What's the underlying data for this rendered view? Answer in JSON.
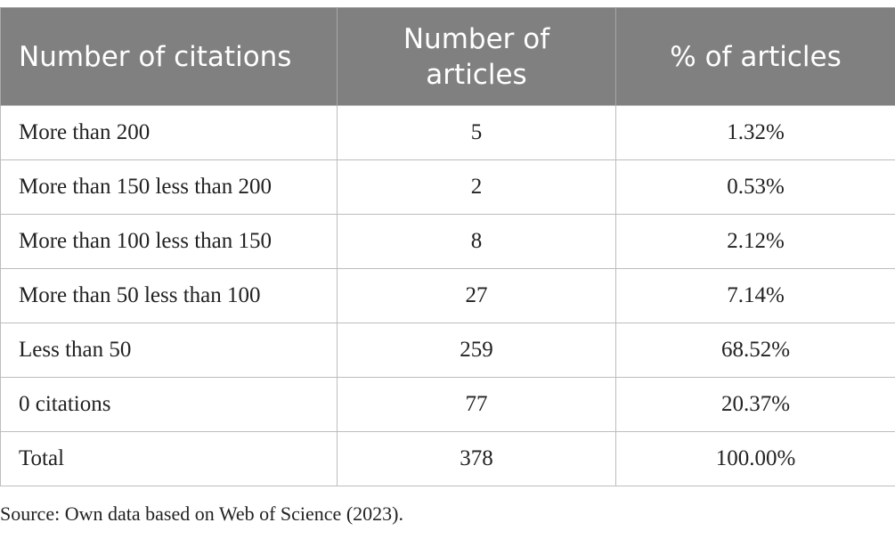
{
  "table": {
    "headers": [
      "Number of citations",
      "Number of articles",
      "% of articles"
    ],
    "rows": [
      [
        "More than 200",
        "5",
        "1.32%"
      ],
      [
        "More than 150 less than 200",
        "2",
        "0.53%"
      ],
      [
        "More than 100 less than 150",
        "8",
        "2.12%"
      ],
      [
        "More than 50 less than 100",
        "27",
        "7.14%"
      ],
      [
        "Less than 50",
        "259",
        "68.52%"
      ],
      [
        "0 citations",
        "77",
        "20.37%"
      ],
      [
        "Total",
        "378",
        "100.00%"
      ]
    ]
  },
  "footnote": "Source: Own data based on Web of Science (2023)."
}
